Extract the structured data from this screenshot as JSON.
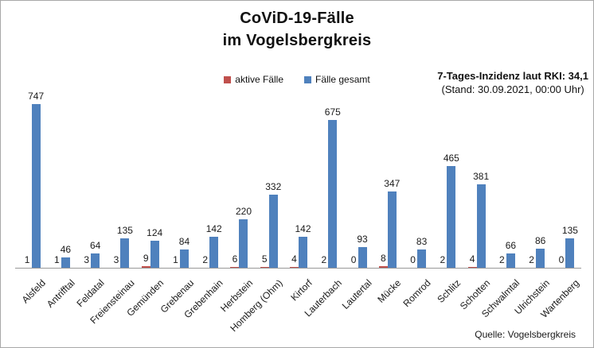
{
  "title": {
    "line1": "CoViD-19-Fälle",
    "line2": "im Vogelsbergkreis"
  },
  "legend": [
    {
      "label": "aktive Fälle",
      "color": "#C0504D"
    },
    {
      "label": "Fälle gesamt",
      "color": "#4F81BD"
    }
  ],
  "incidence": {
    "line1": "7-Tages-Inzidenz laut RKI: 34,1",
    "line2": "(Stand: 30.09.2021, 00:00 Uhr)"
  },
  "source": "Quelle: Vogelsbergkreis",
  "chart_data": {
    "type": "bar",
    "title": "CoViD-19-Fälle im Vogelsbergkreis",
    "categories": [
      "Alsfeld",
      "Antrifftal",
      "Feldatal",
      "Freiensteinau",
      "Gemünden",
      "Grebenau",
      "Grebenhain",
      "Herbstein",
      "Homberg (Ohm)",
      "Kirtorf",
      "Lauterbach",
      "Lautertal",
      "Mücke",
      "Romrod",
      "Schlitz",
      "Schotten",
      "Schwalmtal",
      "Ulrichstein",
      "Wartenberg"
    ],
    "series": [
      {
        "name": "aktive Fälle",
        "color": "#C0504D",
        "values": [
          1,
          1,
          3,
          3,
          9,
          1,
          2,
          6,
          5,
          4,
          2,
          0,
          8,
          0,
          2,
          4,
          2,
          2,
          0
        ]
      },
      {
        "name": "Fälle gesamt",
        "color": "#4F81BD",
        "values": [
          747,
          46,
          64,
          135,
          124,
          84,
          142,
          220,
          332,
          142,
          675,
          93,
          347,
          83,
          465,
          381,
          66,
          86,
          135
        ]
      }
    ],
    "ylim": [
      0,
      800
    ],
    "grid": false,
    "value_labels": true,
    "legend_position": "top-center",
    "xlabel": "",
    "ylabel": ""
  }
}
